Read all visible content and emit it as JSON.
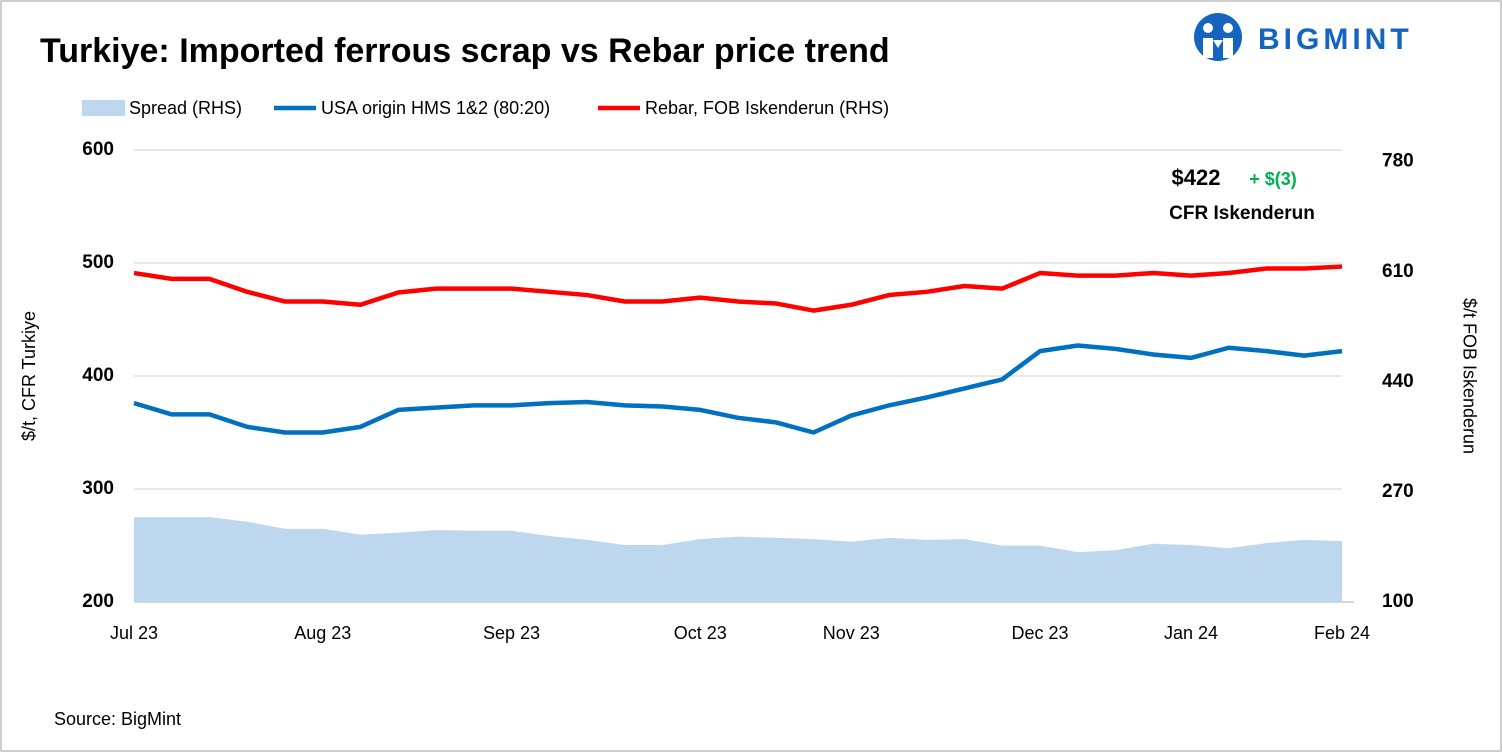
{
  "logo": "BIGMINT",
  "chart_data": {
    "type": "line",
    "title": "Turkiye: Imported ferrous scrap vs Rebar price trend",
    "ylabel": "$/t, CFR Turkiye",
    "y2label": "$/t FOB Iskenderun",
    "source": "Source: BigMint",
    "annotations": [
      "$422",
      "+ $(3)",
      "CFR Iskenderun"
    ],
    "categories": [
      "Jul 23",
      null,
      null,
      null,
      null,
      "Aug 23",
      null,
      null,
      null,
      null,
      "Sep 23",
      null,
      null,
      null,
      null,
      "Oct 23",
      null,
      null,
      null,
      "Nov 23",
      null,
      null,
      null,
      null,
      "Dec 23",
      null,
      null,
      null,
      "Jan 24",
      null,
      null,
      null,
      "Feb 24"
    ],
    "ylim": [
      200,
      600
    ],
    "yticks": [
      200,
      300,
      400,
      500,
      600
    ],
    "y2lim": [
      100,
      798
    ],
    "y2ticks": [
      100,
      270,
      440,
      610,
      780
    ],
    "grid": true,
    "series": [
      {
        "name": "Spread (RHS)",
        "type": "area",
        "axis": "y2",
        "color": "#bdd7ee",
        "values": [
          231,
          231,
          231,
          224,
          213,
          213,
          204,
          207,
          211,
          210,
          210,
          202,
          196,
          188,
          188,
          197,
          201,
          199,
          197,
          193,
          199,
          196,
          197,
          187,
          187,
          177,
          180,
          190,
          188,
          183,
          191,
          196,
          194
        ]
      },
      {
        "name": "USA origin HMS 1&2 (80:20)",
        "type": "line",
        "color": "#0070c0",
        "values": [
          376,
          366,
          366,
          355,
          350,
          350,
          355,
          370,
          372,
          374,
          374,
          376,
          377,
          374,
          373,
          370,
          363,
          359,
          350,
          365,
          374,
          381,
          389,
          397,
          422,
          427,
          424,
          419,
          416,
          425,
          422,
          418,
          422
        ]
      },
      {
        "name": "Rebar, FOB Iskenderun (RHS)",
        "type": "line",
        "axis": "y2",
        "color": "#ff0000",
        "values": [
          608,
          599,
          599,
          579,
          564,
          564,
          559,
          578,
          584,
          584,
          584,
          579,
          574,
          564,
          564,
          570,
          564,
          561,
          550,
          559,
          574,
          579,
          588,
          584,
          608,
          604,
          604,
          608,
          604,
          608,
          615,
          615,
          618
        ]
      }
    ]
  }
}
